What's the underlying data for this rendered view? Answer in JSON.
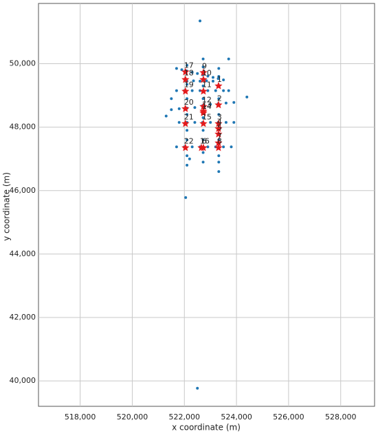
{
  "chart_data": {
    "type": "scatter",
    "xlabel": "x coordinate (m)",
    "ylabel": "y coordinate (m)",
    "xlim": [
      516400,
      529300
    ],
    "ylim": [
      39200,
      51900
    ],
    "xticks": [
      {
        "value": 518000,
        "label": "518,000"
      },
      {
        "value": 520000,
        "label": "520,000"
      },
      {
        "value": 522000,
        "label": "522,000"
      },
      {
        "value": 524000,
        "label": "524,000"
      },
      {
        "value": 526000,
        "label": "526,000"
      },
      {
        "value": 528000,
        "label": "528,000"
      }
    ],
    "yticks": [
      {
        "value": 40000,
        "label": "40,000"
      },
      {
        "value": 42000,
        "label": "42,000"
      },
      {
        "value": 44000,
        "label": "44,000"
      },
      {
        "value": 46000,
        "label": "46,000"
      },
      {
        "value": 48000,
        "label": "48,000"
      },
      {
        "value": 50000,
        "label": "50,000"
      }
    ],
    "grid": true,
    "series": [
      {
        "color": "#1f77b4",
        "marker": "circle",
        "x": [
          521700,
          521900,
          522100,
          522300,
          522500,
          522700,
          522900,
          523100,
          523300,
          523500,
          522100,
          522350,
          522600,
          522850,
          523100,
          521700,
          522000,
          522300,
          522600,
          522900,
          523200,
          523500,
          523700,
          521500,
          521800,
          522100,
          522400,
          522700,
          523000,
          523300,
          523600,
          523900,
          521800,
          522100,
          522400,
          522700,
          523000,
          523300,
          523600,
          523900,
          521700,
          522000,
          522300,
          522600,
          522900,
          523200,
          523500,
          523800,
          522100,
          522100,
          522100,
          522100,
          522100,
          522100,
          522100,
          522100,
          522720,
          522720,
          522720,
          522720,
          522720,
          522720,
          522720,
          522720,
          522720,
          523320,
          523320,
          523320,
          523320,
          523320,
          523320,
          523320,
          523320,
          522600,
          522050,
          522500,
          524400,
          523700,
          521300,
          521500,
          522200
        ],
        "values": [
          49850,
          49810,
          49770,
          49730,
          49690,
          49650,
          49610,
          49570,
          49530,
          49490,
          49450,
          49460,
          49450,
          49460,
          49450,
          49150,
          49150,
          49150,
          49150,
          49150,
          49150,
          49150,
          49150,
          48550,
          48580,
          48600,
          48620,
          48680,
          48720,
          48740,
          48760,
          48780,
          48150,
          48150,
          48150,
          48150,
          48150,
          48150,
          48150,
          48150,
          47380,
          47380,
          47380,
          47380,
          47380,
          47380,
          47380,
          47380,
          46800,
          47100,
          47600,
          47900,
          48400,
          48900,
          49350,
          49950,
          46900,
          47200,
          47600,
          47900,
          48300,
          48900,
          49300,
          49900,
          50150,
          46600,
          46900,
          47100,
          47600,
          48400,
          48900,
          49600,
          49850,
          51350,
          45780,
          39770,
          48950,
          50150,
          48350,
          48900,
          47000
        ]
      },
      {
        "color": "#e41a1c",
        "marker": "star",
        "x": [
          523310,
          523310,
          523310,
          523310,
          523310,
          522730,
          523310,
          523310,
          522730,
          522730,
          522730,
          522730,
          522730,
          522730,
          522730,
          522650,
          522040,
          522040,
          522040,
          522040,
          522040,
          522040
        ],
        "values": [
          49300,
          48700,
          48110,
          47950,
          47780,
          47350,
          47500,
          47350,
          49720,
          49500,
          49130,
          48650,
          48500,
          48450,
          48110,
          47350,
          49740,
          49500,
          49130,
          48580,
          48110,
          47350
        ],
        "labels": [
          "1",
          "2",
          "3",
          "4",
          "5",
          "6",
          "7",
          "8",
          "9",
          "10",
          "11",
          "12",
          "13",
          "14",
          "15",
          "16",
          "17",
          "18",
          "19",
          "20",
          "21",
          "22"
        ]
      }
    ]
  }
}
